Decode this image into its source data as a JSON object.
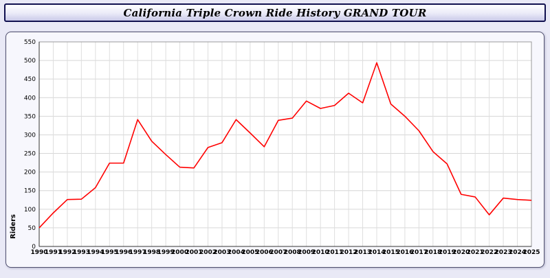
{
  "header": {
    "title": "California Triple Crown Ride History GRAND TOUR"
  },
  "chart_data": {
    "type": "line",
    "title": "California Triple Crown Ride History GRAND TOUR",
    "xlabel": "",
    "ylabel": "Riders",
    "ylim": [
      0,
      550
    ],
    "ytick_step": 50,
    "grid": true,
    "legend_position": "none",
    "line_color": "#ff0000",
    "plot_background": "#ffffff",
    "x": [
      1990,
      1991,
      1992,
      1993,
      1994,
      1995,
      1996,
      1997,
      1998,
      1999,
      2000,
      2001,
      2002,
      2003,
      2004,
      2005,
      2006,
      2007,
      2008,
      2009,
      2010,
      2011,
      2012,
      2013,
      2014,
      2015,
      2016,
      2017,
      2018,
      2019,
      2020,
      2021,
      2022,
      2023,
      2024,
      2025
    ],
    "values": [
      50,
      90,
      126,
      127,
      158,
      224,
      224,
      341,
      283,
      247,
      213,
      211,
      266,
      279,
      341,
      305,
      268,
      339,
      345,
      391,
      371,
      379,
      412,
      386,
      494,
      383,
      350,
      311,
      255,
      222,
      140,
      133,
      85,
      130,
      126,
      124
    ]
  }
}
